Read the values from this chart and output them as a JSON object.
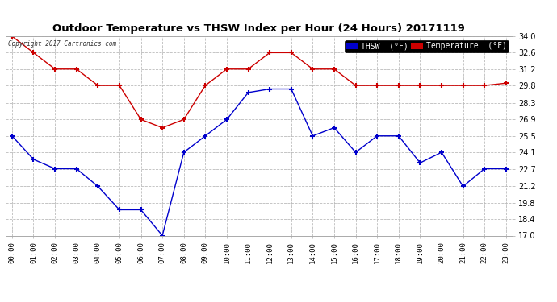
{
  "title": "Outdoor Temperature vs THSW Index per Hour (24 Hours) 20171119",
  "copyright_text": "Copyright 2017 Cartronics.com",
  "hours": [
    "00:00",
    "01:00",
    "02:00",
    "03:00",
    "04:00",
    "05:00",
    "06:00",
    "07:00",
    "08:00",
    "09:00",
    "10:00",
    "11:00",
    "12:00",
    "13:00",
    "14:00",
    "15:00",
    "16:00",
    "17:00",
    "18:00",
    "19:00",
    "20:00",
    "21:00",
    "22:00",
    "23:00"
  ],
  "temperature": [
    34.0,
    32.6,
    31.2,
    31.2,
    29.8,
    29.8,
    26.9,
    26.2,
    26.9,
    29.8,
    31.2,
    31.2,
    32.6,
    32.6,
    31.2,
    31.2,
    29.8,
    29.8,
    29.8,
    29.8,
    29.8,
    29.8,
    29.8,
    30.0
  ],
  "thsw": [
    25.5,
    23.5,
    22.7,
    22.7,
    21.2,
    19.2,
    19.2,
    17.0,
    24.1,
    25.5,
    26.9,
    29.2,
    29.5,
    29.5,
    25.5,
    26.2,
    24.1,
    25.5,
    25.5,
    23.2,
    24.1,
    21.2,
    22.7,
    22.7
  ],
  "temp_color": "#cc0000",
  "thsw_color": "#0000cc",
  "background_color": "#ffffff",
  "grid_color": "#bbbbbb",
  "ylim_min": 17.0,
  "ylim_max": 34.0,
  "yticks": [
    17.0,
    18.4,
    19.8,
    21.2,
    22.7,
    24.1,
    25.5,
    26.9,
    28.3,
    29.8,
    31.2,
    32.6,
    34.0
  ],
  "legend_thsw_bg": "#0000cc",
  "legend_temp_bg": "#cc0000",
  "legend_thsw_label": "THSW  (°F)",
  "legend_temp_label": "Temperature  (°F)"
}
